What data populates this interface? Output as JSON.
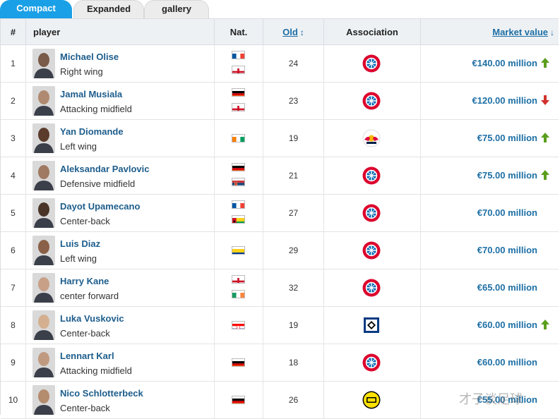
{
  "tabs": [
    {
      "label": "Compact",
      "active": true
    },
    {
      "label": "Expanded",
      "active": false
    },
    {
      "label": "gallery",
      "active": false
    }
  ],
  "columns": {
    "num": "#",
    "player": "player",
    "nat": "Nat.",
    "old": "Old",
    "association": "Association",
    "market_value": "Market value"
  },
  "rows": [
    {
      "num": "1",
      "name": "Michael Olise",
      "position": "Right wing",
      "flags": [
        "france",
        "england"
      ],
      "age": "24",
      "club": "bayern",
      "value": "€140.00 million",
      "trend": "up"
    },
    {
      "num": "2",
      "name": "Jamal Musiala",
      "position": "Attacking midfield",
      "flags": [
        "germany",
        "england"
      ],
      "age": "23",
      "club": "bayern",
      "value": "€120.00 million",
      "trend": "down"
    },
    {
      "num": "3",
      "name": "Yan Diomande",
      "position": "Left wing",
      "flags": [
        "ivory-coast"
      ],
      "age": "19",
      "club": "leipzig",
      "value": "€75.00 million",
      "trend": "up"
    },
    {
      "num": "4",
      "name": "Aleksandar Pavlovic",
      "position": "Defensive midfield",
      "flags": [
        "germany",
        "serbia"
      ],
      "age": "21",
      "club": "bayern",
      "value": "€75.00 million",
      "trend": "up"
    },
    {
      "num": "5",
      "name": "Dayot Upamecano",
      "position": "Center-back",
      "flags": [
        "france",
        "guinea-bissau"
      ],
      "age": "27",
      "club": "bayern",
      "value": "€70.00 million",
      "trend": "none"
    },
    {
      "num": "6",
      "name": "Luis Diaz",
      "position": "Left wing",
      "flags": [
        "colombia"
      ],
      "age": "29",
      "club": "bayern",
      "value": "€70.00 million",
      "trend": "none"
    },
    {
      "num": "7",
      "name": "Harry Kane",
      "position": "center forward",
      "flags": [
        "england",
        "ireland"
      ],
      "age": "32",
      "club": "bayern",
      "value": "€65.00 million",
      "trend": "none"
    },
    {
      "num": "8",
      "name": "Luka Vuskovic",
      "position": "Center-back",
      "flags": [
        "croatia"
      ],
      "age": "19",
      "club": "hamburg",
      "value": "€60.00 million",
      "trend": "up"
    },
    {
      "num": "9",
      "name": "Lennart Karl",
      "position": "Attacking midfield",
      "flags": [
        "germany"
      ],
      "age": "18",
      "club": "bayern",
      "value": "€60.00 million",
      "trend": "none"
    },
    {
      "num": "10",
      "name": "Nico Schlotterbeck",
      "position": "Center-back",
      "flags": [
        "germany"
      ],
      "age": "26",
      "club": "dortmund",
      "value": "€55.00 million",
      "trend": "none"
    }
  ],
  "colors": {
    "accent": "#1aa0e6",
    "link": "#1d6fa5",
    "up": "#5a9e1c",
    "down": "#d0312d"
  },
  "watermark": "才子谈足球"
}
